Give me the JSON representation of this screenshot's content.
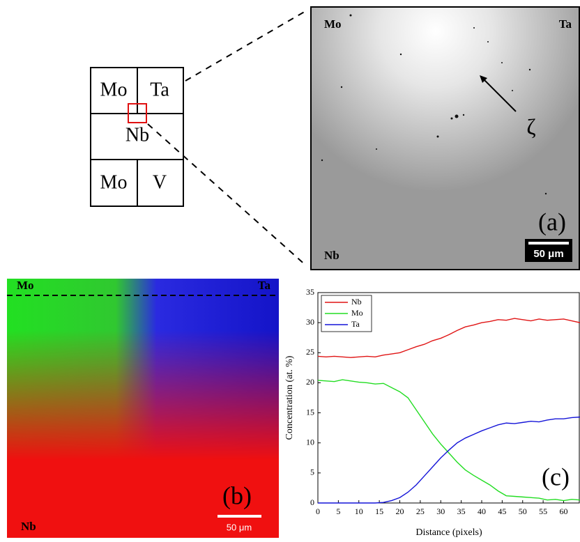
{
  "schematic": {
    "top_left": "Mo",
    "top_right": "Ta",
    "middle": "Nb",
    "bottom_left": "Mo",
    "bottom_right": "V"
  },
  "panel_a": {
    "top_left": "Mo",
    "top_right": "Ta",
    "bottom_left": "Nb",
    "annotation": "ζ",
    "tag": "(a)",
    "scale_bar": "50 μm"
  },
  "panel_b": {
    "top_left": "Mo",
    "top_right": "Ta",
    "bottom_left": "Nb",
    "tag": "(b)",
    "scale_bar": "50 μm"
  },
  "chart_data": {
    "type": "line",
    "x_label": "Distance (pixels)",
    "y_label": "Concentration (at. %)",
    "annotation": "(c)",
    "x": [
      0,
      2,
      4,
      6,
      8,
      10,
      12,
      14,
      16,
      18,
      20,
      22,
      24,
      26,
      28,
      30,
      32,
      34,
      36,
      38,
      40,
      42,
      44,
      46,
      48,
      50,
      52,
      54,
      56,
      58,
      60,
      62,
      64
    ],
    "series": [
      {
        "name": "Nb",
        "color": "#e01414",
        "values": [
          24.4,
          24.3,
          24.4,
          24.3,
          24.2,
          24.3,
          24.4,
          24.3,
          24.6,
          24.8,
          25.0,
          25.5,
          26.0,
          26.4,
          27.0,
          27.4,
          28.0,
          28.7,
          29.3,
          29.6,
          30.0,
          30.2,
          30.5,
          30.4,
          30.7,
          30.5,
          30.3,
          30.6,
          30.4,
          30.5,
          30.6,
          30.3,
          30.0
        ]
      },
      {
        "name": "Mo",
        "color": "#22dd22",
        "values": [
          20.4,
          20.3,
          20.2,
          20.5,
          20.3,
          20.1,
          20.0,
          19.8,
          19.9,
          19.2,
          18.5,
          17.5,
          15.5,
          13.5,
          11.5,
          9.8,
          8.3,
          6.8,
          5.5,
          4.6,
          3.8,
          3.0,
          2.0,
          1.2,
          1.1,
          1.0,
          0.9,
          0.8,
          0.5,
          0.6,
          0.4,
          0.6,
          0.5
        ]
      },
      {
        "name": "Ta",
        "color": "#1414d8",
        "values": [
          0,
          0,
          0,
          0,
          0,
          0,
          0,
          0,
          0.1,
          0.4,
          0.9,
          1.8,
          3.0,
          4.5,
          6.0,
          7.5,
          8.8,
          10.0,
          10.8,
          11.4,
          12.0,
          12.5,
          13.0,
          13.3,
          13.2,
          13.4,
          13.6,
          13.5,
          13.8,
          14.0,
          14.0,
          14.2,
          14.3
        ]
      }
    ],
    "xlim": [
      0,
      64
    ],
    "xticks": [
      0,
      5,
      10,
      15,
      20,
      25,
      30,
      35,
      40,
      45,
      50,
      55,
      60
    ],
    "ylim": [
      0,
      35
    ],
    "yticks": [
      0,
      5,
      10,
      15,
      20,
      25,
      30,
      35
    ],
    "legend": "top-left"
  }
}
